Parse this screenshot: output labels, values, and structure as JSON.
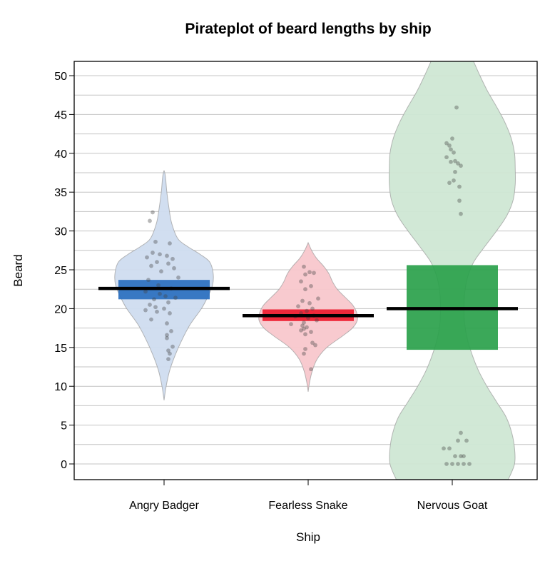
{
  "chart_data": {
    "type": "pirateplot",
    "title": "Pirateplot of beard lengths by ship",
    "xlabel": "Ship",
    "ylabel": "Beard",
    "ylim": [
      -2,
      52
    ],
    "yticks": [
      0,
      5,
      10,
      15,
      20,
      25,
      30,
      35,
      40,
      45,
      50
    ],
    "grid": true,
    "categories": [
      "Angry Badger",
      "Fearless Snake",
      "Nervous Goat"
    ],
    "groups": [
      {
        "name": "Angry Badger",
        "color": "#2a6fbf",
        "bean_color": "#cfdcef",
        "mean": 22.6,
        "hdi": [
          21.2,
          23.7
        ],
        "density": [
          [
            8.2,
            0.0
          ],
          [
            10,
            0.03
          ],
          [
            12,
            0.08
          ],
          [
            14,
            0.16
          ],
          [
            16,
            0.26
          ],
          [
            18,
            0.38
          ],
          [
            20,
            0.54
          ],
          [
            21.5,
            0.63
          ],
          [
            23,
            0.7
          ],
          [
            24.5,
            0.71
          ],
          [
            26,
            0.66
          ],
          [
            27,
            0.52
          ],
          [
            28,
            0.34
          ],
          [
            29,
            0.2
          ],
          [
            31,
            0.11
          ],
          [
            33,
            0.07
          ],
          [
            35,
            0.04
          ],
          [
            37,
            0.02
          ],
          [
            37.8,
            0.0
          ]
        ],
        "points": [
          {
            "x": -0.08,
            "y": 32.4
          },
          {
            "x": -0.1,
            "y": 31.3
          },
          {
            "x": -0.06,
            "y": 28.6
          },
          {
            "x": 0.04,
            "y": 28.4
          },
          {
            "x": -0.08,
            "y": 27.2
          },
          {
            "x": -0.03,
            "y": 27.0
          },
          {
            "x": 0.02,
            "y": 26.8
          },
          {
            "x": -0.12,
            "y": 26.6
          },
          {
            "x": 0.06,
            "y": 26.4
          },
          {
            "x": -0.05,
            "y": 26.0
          },
          {
            "x": 0.03,
            "y": 25.8
          },
          {
            "x": -0.09,
            "y": 25.5
          },
          {
            "x": 0.07,
            "y": 25.2
          },
          {
            "x": -0.02,
            "y": 24.8
          },
          {
            "x": 0.1,
            "y": 24.0
          },
          {
            "x": -0.11,
            "y": 23.7
          },
          {
            "x": -0.04,
            "y": 23.0
          },
          {
            "x": 0.05,
            "y": 22.6
          },
          {
            "x": -0.13,
            "y": 22.2
          },
          {
            "x": -0.03,
            "y": 21.9
          },
          {
            "x": 0.01,
            "y": 21.6
          },
          {
            "x": 0.08,
            "y": 21.4
          },
          {
            "x": -0.07,
            "y": 21.2
          },
          {
            "x": 0.03,
            "y": 20.8
          },
          {
            "x": -0.1,
            "y": 20.5
          },
          {
            "x": -0.06,
            "y": 20.2
          },
          {
            "x": 0.0,
            "y": 20.0
          },
          {
            "x": -0.13,
            "y": 19.8
          },
          {
            "x": -0.05,
            "y": 19.6
          },
          {
            "x": 0.04,
            "y": 19.4
          },
          {
            "x": -0.09,
            "y": 18.6
          },
          {
            "x": 0.02,
            "y": 18.1
          },
          {
            "x": 0.05,
            "y": 17.1
          },
          {
            "x": 0.02,
            "y": 16.6
          },
          {
            "x": 0.02,
            "y": 16.2
          },
          {
            "x": 0.06,
            "y": 15.1
          },
          {
            "x": 0.03,
            "y": 14.6
          },
          {
            "x": 0.04,
            "y": 14.2
          },
          {
            "x": 0.03,
            "y": 13.5
          }
        ]
      },
      {
        "name": "Fearless Snake",
        "color": "#ee1a2e",
        "bean_color": "#f8c7cc",
        "mean": 19.1,
        "hdi": [
          18.4,
          19.9
        ],
        "density": [
          [
            9.3,
            0.0
          ],
          [
            10.5,
            0.02
          ],
          [
            12,
            0.06
          ],
          [
            13.5,
            0.13
          ],
          [
            15,
            0.27
          ],
          [
            16.5,
            0.5
          ],
          [
            17.5,
            0.64
          ],
          [
            18.5,
            0.71
          ],
          [
            19.5,
            0.7
          ],
          [
            20.5,
            0.64
          ],
          [
            21.5,
            0.53
          ],
          [
            22.5,
            0.42
          ],
          [
            23.5,
            0.35
          ],
          [
            24.5,
            0.3
          ],
          [
            25.5,
            0.22
          ],
          [
            26.5,
            0.12
          ],
          [
            27.5,
            0.05
          ],
          [
            28.5,
            0.0
          ]
        ],
        "points": [
          {
            "x": -0.03,
            "y": 25.4
          },
          {
            "x": 0.01,
            "y": 24.7
          },
          {
            "x": -0.02,
            "y": 24.4
          },
          {
            "x": 0.04,
            "y": 24.6
          },
          {
            "x": -0.05,
            "y": 23.5
          },
          {
            "x": 0.02,
            "y": 22.9
          },
          {
            "x": -0.02,
            "y": 22.5
          },
          {
            "x": 0.07,
            "y": 21.3
          },
          {
            "x": -0.04,
            "y": 21.0
          },
          {
            "x": 0.01,
            "y": 20.7
          },
          {
            "x": -0.07,
            "y": 20.3
          },
          {
            "x": 0.03,
            "y": 20.0
          },
          {
            "x": -0.01,
            "y": 19.7
          },
          {
            "x": -0.05,
            "y": 19.4
          },
          {
            "x": 0.04,
            "y": 19.1
          },
          {
            "x": -0.09,
            "y": 19.0
          },
          {
            "x": 0.0,
            "y": 18.8
          },
          {
            "x": 0.06,
            "y": 18.5
          },
          {
            "x": -0.03,
            "y": 18.2
          },
          {
            "x": -0.12,
            "y": 18.0
          },
          {
            "x": -0.04,
            "y": 17.8
          },
          {
            "x": -0.01,
            "y": 17.6
          },
          {
            "x": -0.03,
            "y": 17.4
          },
          {
            "x": -0.05,
            "y": 17.2
          },
          {
            "x": 0.02,
            "y": 17.0
          },
          {
            "x": -0.02,
            "y": 16.7
          },
          {
            "x": 0.03,
            "y": 15.6
          },
          {
            "x": 0.05,
            "y": 15.3
          },
          {
            "x": -0.02,
            "y": 14.8
          },
          {
            "x": -0.03,
            "y": 14.2
          },
          {
            "x": 0.02,
            "y": 12.2
          }
        ]
      },
      {
        "name": "Nervous Goat",
        "color": "#2aa14b",
        "bean_color": "#cfe7d4",
        "mean": 20.0,
        "hdi": [
          14.7,
          25.6
        ],
        "density": [
          [
            -2,
            0.81
          ],
          [
            0,
            0.9
          ],
          [
            2,
            0.9
          ],
          [
            4,
            0.86
          ],
          [
            6,
            0.78
          ],
          [
            8,
            0.64
          ],
          [
            10,
            0.5
          ],
          [
            12,
            0.38
          ],
          [
            14,
            0.29
          ],
          [
            16,
            0.22
          ],
          [
            18,
            0.18
          ],
          [
            20,
            0.17
          ],
          [
            22,
            0.18
          ],
          [
            24,
            0.22
          ],
          [
            26,
            0.31
          ],
          [
            28,
            0.47
          ],
          [
            30,
            0.64
          ],
          [
            32,
            0.79
          ],
          [
            34,
            0.88
          ],
          [
            36,
            0.91
          ],
          [
            38,
            0.91
          ],
          [
            40,
            0.9
          ],
          [
            42,
            0.85
          ],
          [
            44,
            0.76
          ],
          [
            46,
            0.64
          ],
          [
            48,
            0.51
          ],
          [
            50,
            0.4
          ],
          [
            52,
            0.3
          ]
        ],
        "points": [
          {
            "x": 0.03,
            "y": 45.9
          },
          {
            "x": -0.04,
            "y": 41.3
          },
          {
            "x": 0.0,
            "y": 41.9
          },
          {
            "x": -0.02,
            "y": 41.0
          },
          {
            "x": -0.01,
            "y": 40.5
          },
          {
            "x": 0.01,
            "y": 40.1
          },
          {
            "x": -0.04,
            "y": 39.5
          },
          {
            "x": 0.02,
            "y": 39.0
          },
          {
            "x": 0.04,
            "y": 38.7
          },
          {
            "x": 0.06,
            "y": 38.4
          },
          {
            "x": -0.01,
            "y": 38.9
          },
          {
            "x": 0.02,
            "y": 37.6
          },
          {
            "x": 0.01,
            "y": 36.5
          },
          {
            "x": -0.02,
            "y": 36.2
          },
          {
            "x": 0.05,
            "y": 35.7
          },
          {
            "x": 0.05,
            "y": 33.9
          },
          {
            "x": 0.06,
            "y": 32.2
          },
          {
            "x": 0.06,
            "y": 4.0
          },
          {
            "x": 0.04,
            "y": 3.0
          },
          {
            "x": 0.1,
            "y": 3.0
          },
          {
            "x": -0.06,
            "y": 2.0
          },
          {
            "x": -0.02,
            "y": 2.0
          },
          {
            "x": 0.02,
            "y": 1.0
          },
          {
            "x": 0.06,
            "y": 1.0
          },
          {
            "x": 0.08,
            "y": 1.0
          },
          {
            "x": -0.04,
            "y": 0.0
          },
          {
            "x": 0.0,
            "y": 0.0
          },
          {
            "x": 0.04,
            "y": 0.0
          },
          {
            "x": 0.08,
            "y": 0.0
          },
          {
            "x": 0.12,
            "y": 0.0
          }
        ]
      }
    ]
  }
}
